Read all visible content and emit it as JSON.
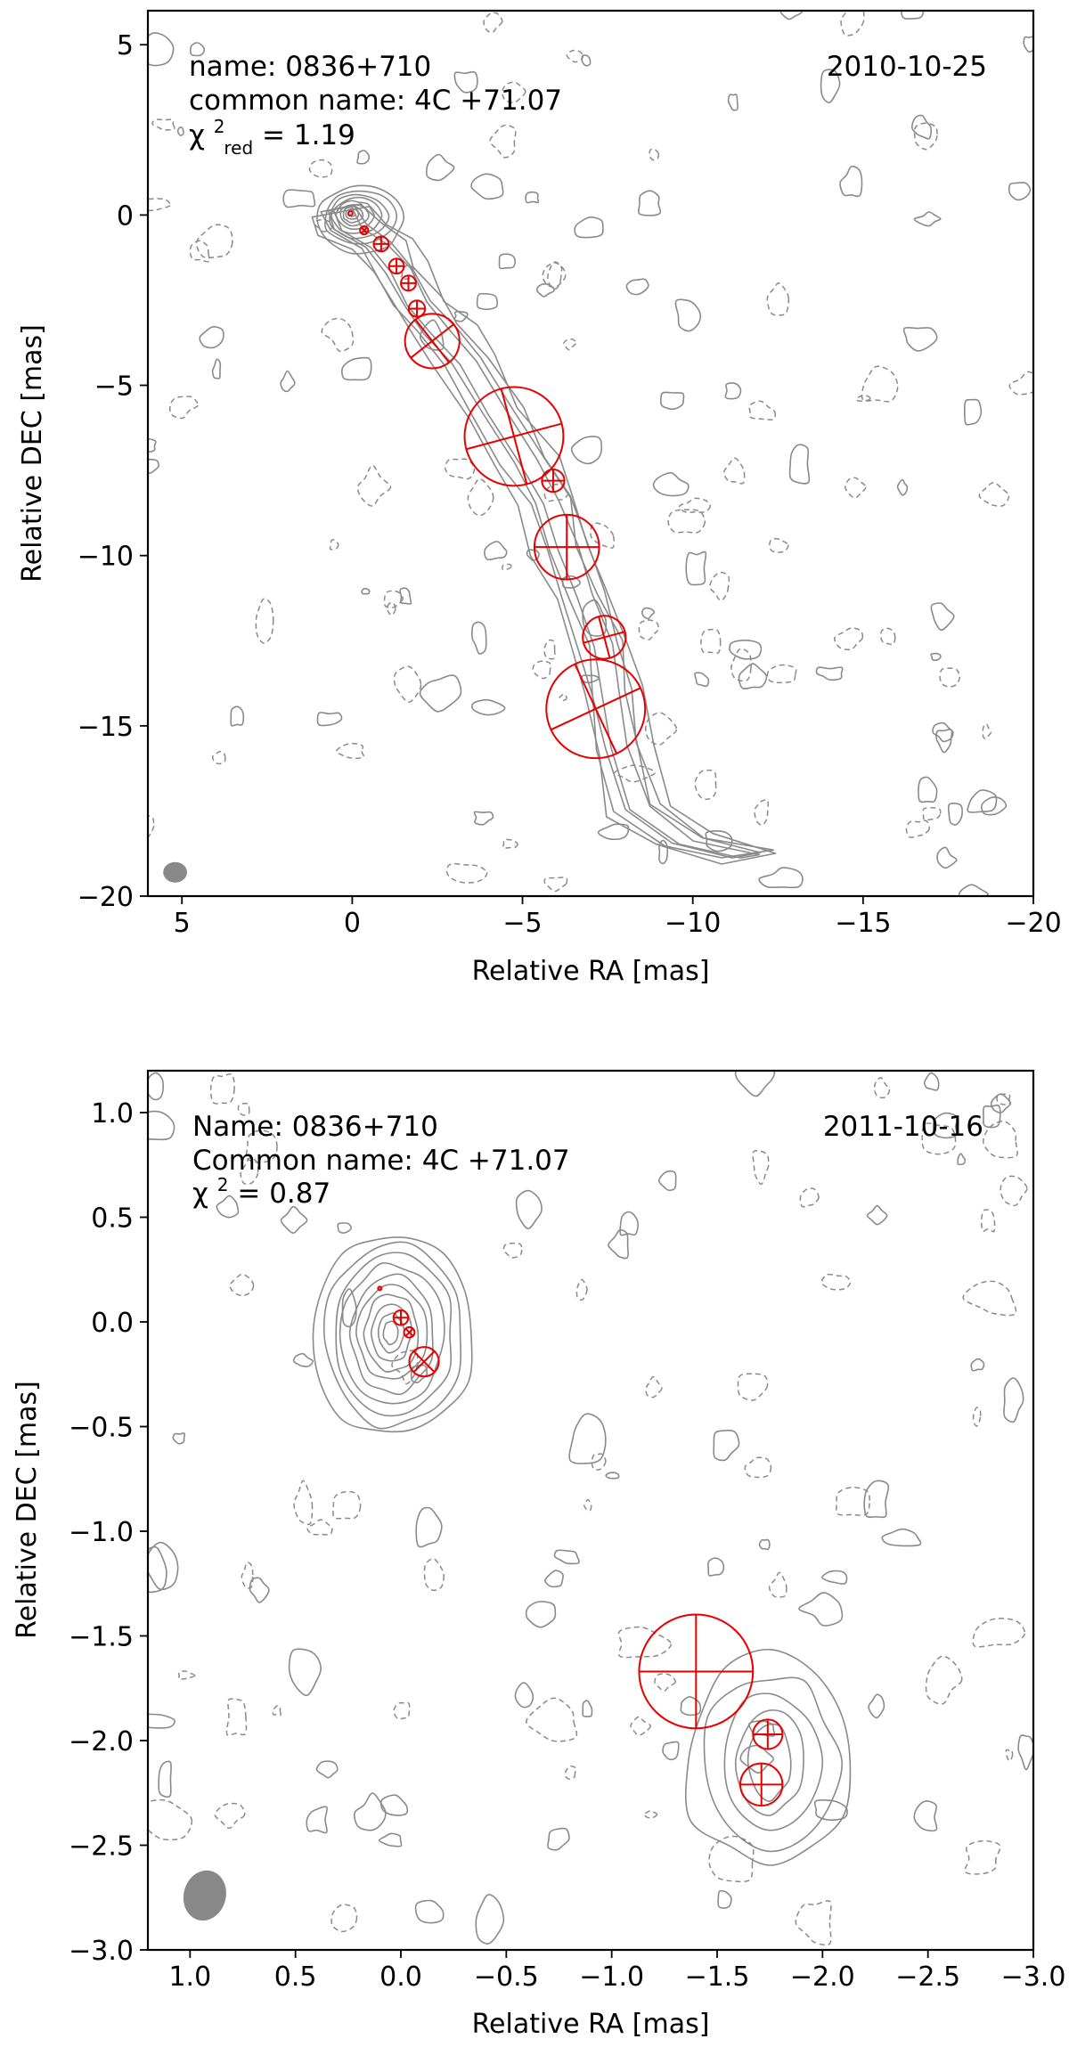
{
  "chart_data": [
    {
      "type": "scatter",
      "panel": "top",
      "xlabel": "Relative RA [mas]",
      "ylabel": "Relative DEC [mas]",
      "xlim": [
        6,
        -20
      ],
      "ylim": [
        -20,
        6
      ],
      "xticks": [
        5,
        0,
        -5,
        -10,
        -15,
        -20
      ],
      "yticks": [
        5,
        0,
        -5,
        -10,
        -15,
        -20
      ],
      "xtick_labels": [
        "5",
        "0",
        "−5",
        "−10",
        "−15",
        "−20"
      ],
      "ytick_labels": [
        "5",
        "0",
        "−5",
        "−10",
        "−15",
        "−20"
      ],
      "annotations": {
        "name": "name: 0836+710",
        "common_name": "common name: 4C +71.07",
        "chi_symbol": "χ",
        "chi_sup": "2",
        "chi_sub": "red",
        "chi_value": " = 1.19",
        "date": "2010-10-25"
      },
      "beam": {
        "x": 5.2,
        "y": -19.3,
        "rx": 0.35,
        "ry": 0.3,
        "color": "#888888"
      },
      "core_contour": {
        "x": 0.05,
        "y": 0.05
      },
      "jet_path": [
        [
          0.3,
          0.2
        ],
        [
          0,
          -0.4
        ],
        [
          -0.8,
          -0.9
        ],
        [
          -1.4,
          -1.6
        ],
        [
          -1.9,
          -2.6
        ],
        [
          -2.6,
          -3.4
        ],
        [
          -3.4,
          -4.3
        ],
        [
          -4.3,
          -5.8
        ],
        [
          -5.2,
          -7.2
        ],
        [
          -5.8,
          -8.4
        ],
        [
          -6.3,
          -9.8
        ],
        [
          -6.8,
          -11.2
        ],
        [
          -7.4,
          -12.6
        ],
        [
          -7.6,
          -14
        ],
        [
          -7.8,
          -15.6
        ],
        [
          -8.4,
          -17.4
        ],
        [
          -9.8,
          -18.4
        ],
        [
          -11.6,
          -18.8
        ]
      ],
      "components": [
        {
          "x": 0.05,
          "y": 0.05,
          "r": 0.06,
          "angle": 0
        },
        {
          "x": -0.35,
          "y": -0.45,
          "r": 0.12,
          "angle": 45
        },
        {
          "x": -0.85,
          "y": -0.85,
          "r": 0.22,
          "angle": 0
        },
        {
          "x": -1.3,
          "y": -1.5,
          "r": 0.22,
          "angle": 0
        },
        {
          "x": -1.65,
          "y": -2.0,
          "r": 0.22,
          "angle": 0
        },
        {
          "x": -1.9,
          "y": -2.75,
          "r": 0.24,
          "angle": 0
        },
        {
          "x": -2.35,
          "y": -3.7,
          "r": 0.8,
          "angle": 38
        },
        {
          "x": -4.75,
          "y": -6.5,
          "r": 1.45,
          "angle": 15
        },
        {
          "x": -5.9,
          "y": -7.8,
          "r": 0.33,
          "angle": 0
        },
        {
          "x": -6.3,
          "y": -9.75,
          "r": 0.95,
          "angle": 0
        },
        {
          "x": -7.4,
          "y": -12.4,
          "r": 0.63,
          "angle": 15
        },
        {
          "x": -7.15,
          "y": -14.5,
          "r": 1.45,
          "angle": 25
        }
      ]
    },
    {
      "type": "scatter",
      "panel": "bottom",
      "xlabel": "Relative RA [mas]",
      "ylabel": "Relative DEC [mas]",
      "xlim": [
        1.2,
        -3.0
      ],
      "ylim": [
        -3.0,
        1.2
      ],
      "xticks": [
        1.0,
        0.5,
        0.0,
        -0.5,
        -1.0,
        -1.5,
        -2.0,
        -2.5,
        -3.0
      ],
      "yticks": [
        1.0,
        0.5,
        0.0,
        -0.5,
        -1.0,
        -1.5,
        -2.0,
        -2.5,
        -3.0
      ],
      "xtick_labels": [
        "1.0",
        "0.5",
        "0.0",
        "−0.5",
        "−1.0",
        "−1.5",
        "−2.0",
        "−2.5",
        "−3.0"
      ],
      "ytick_labels": [
        "1.0",
        "0.5",
        "0.0",
        "−0.5",
        "−1.0",
        "−1.5",
        "−2.0",
        "−2.5",
        "−3.0"
      ],
      "annotations": {
        "name": "Name: 0836+710",
        "common_name": "Common name: 4C +71.07",
        "chi_symbol": "χ",
        "chi_sup": "2",
        "chi_sub": "",
        "chi_value": " = 0.87",
        "date": "2011-10-16"
      },
      "beam": {
        "x": 0.93,
        "y": -2.74,
        "rx": 0.1,
        "ry": 0.12,
        "color": "#888888"
      },
      "core_contour": {
        "x": 0.05,
        "y": -0.05
      },
      "components": [
        {
          "x": 0.1,
          "y": 0.16,
          "r": 0.003,
          "angle": 0
        },
        {
          "x": 0.0,
          "y": 0.02,
          "r": 0.035,
          "angle": 0
        },
        {
          "x": -0.04,
          "y": -0.05,
          "r": 0.025,
          "angle": 45
        },
        {
          "x": -0.11,
          "y": -0.19,
          "r": 0.07,
          "angle": 45
        },
        {
          "x": -1.4,
          "y": -1.67,
          "r": 0.27,
          "angle": 0
        },
        {
          "x": -1.74,
          "y": -1.97,
          "r": 0.07,
          "angle": 0
        },
        {
          "x": -1.71,
          "y": -2.21,
          "r": 0.1,
          "angle": 0
        }
      ],
      "secondary_contour": {
        "x": -1.75,
        "y": -2.1
      }
    }
  ]
}
